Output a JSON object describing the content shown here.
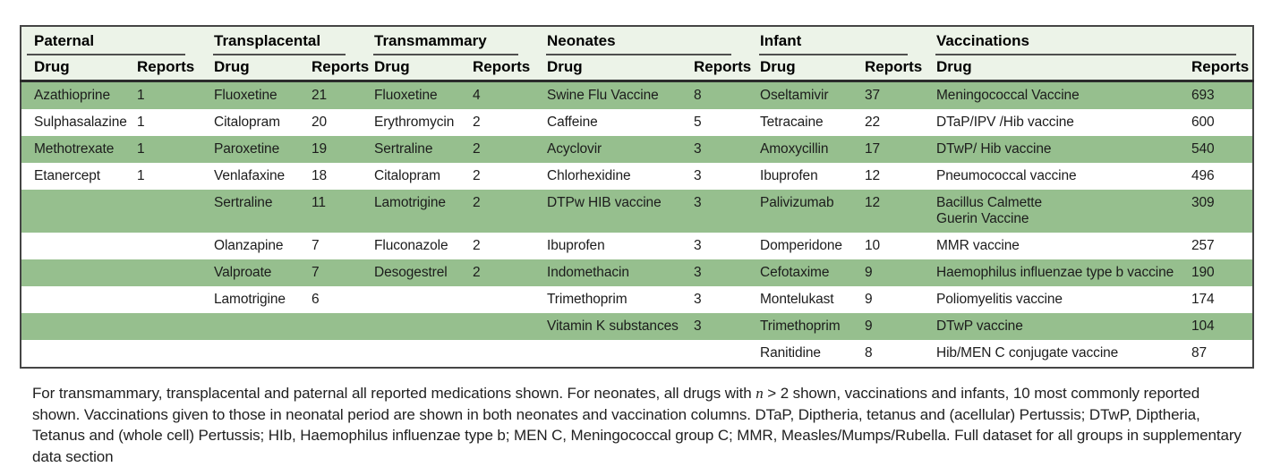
{
  "colors": {
    "row_green": "#96bf8e",
    "header_bg": "#ecf3e8",
    "border": "#454545",
    "rule_dark": "#2b2b2b",
    "group_rule": "#4f4f4f",
    "text": "#1c1c1c"
  },
  "table": {
    "groups": [
      {
        "label": "Paternal"
      },
      {
        "label": "Transplacental"
      },
      {
        "label": "Transmammary"
      },
      {
        "label": "Neonates"
      },
      {
        "label": "Infant"
      },
      {
        "label": "Vaccinations"
      }
    ],
    "sub_headers": {
      "drug": "Drug",
      "reports": "Reports"
    },
    "rows": [
      {
        "shade": "green",
        "cells": [
          [
            "Azathioprine",
            "1"
          ],
          [
            "Fluoxetine",
            "21"
          ],
          [
            "Fluoxetine",
            "4"
          ],
          [
            "Swine Flu Vaccine",
            "8"
          ],
          [
            "Oseltamivir",
            "37"
          ],
          [
            "Meningococcal Vaccine",
            "693"
          ]
        ]
      },
      {
        "shade": "white",
        "cells": [
          [
            "Sulphasalazine",
            "1"
          ],
          [
            "Citalopram",
            "20"
          ],
          [
            "Erythromycin",
            "2"
          ],
          [
            "Caffeine",
            "5"
          ],
          [
            "Tetracaine",
            "22"
          ],
          [
            "DTaP/IPV /Hib vaccine",
            "600"
          ]
        ]
      },
      {
        "shade": "green",
        "cells": [
          [
            "Methotrexate",
            "1"
          ],
          [
            "Paroxetine",
            "19"
          ],
          [
            "Sertraline",
            "2"
          ],
          [
            "Acyclovir",
            "3"
          ],
          [
            "Amoxycillin",
            "17"
          ],
          [
            "DTwP/ Hib vaccine",
            "540"
          ]
        ]
      },
      {
        "shade": "white",
        "cells": [
          [
            "Etanercept",
            "1"
          ],
          [
            "Venlafaxine",
            "18"
          ],
          [
            "Citalopram",
            "2"
          ],
          [
            "Chlorhexidine",
            "3"
          ],
          [
            "Ibuprofen",
            "12"
          ],
          [
            "Pneumococcal vaccine",
            "496"
          ]
        ]
      },
      {
        "shade": "green",
        "cells": [
          [
            "",
            ""
          ],
          [
            "Sertraline",
            "11"
          ],
          [
            "Lamotrigine",
            "2"
          ],
          [
            "DTPw HIB vaccine",
            "3"
          ],
          [
            "Palivizumab",
            "12"
          ],
          [
            "Bacillus Calmette\nGuerin Vaccine",
            "309"
          ]
        ]
      },
      {
        "shade": "white",
        "cells": [
          [
            "",
            ""
          ],
          [
            "Olanzapine",
            "7"
          ],
          [
            "Fluconazole",
            "2"
          ],
          [
            "Ibuprofen",
            "3"
          ],
          [
            "Domperidone",
            "10"
          ],
          [
            "MMR vaccine",
            "257"
          ]
        ]
      },
      {
        "shade": "green",
        "cells": [
          [
            "",
            ""
          ],
          [
            "Valproate",
            "7"
          ],
          [
            "Desogestrel",
            "2"
          ],
          [
            "Indomethacin",
            "3"
          ],
          [
            "Cefotaxime",
            "9"
          ],
          [
            "Haemophilus influenzae type b vaccine",
            "190"
          ]
        ]
      },
      {
        "shade": "white",
        "cells": [
          [
            "",
            ""
          ],
          [
            "Lamotrigine",
            "6"
          ],
          [
            "",
            ""
          ],
          [
            "Trimethoprim",
            "3"
          ],
          [
            "Montelukast",
            "9"
          ],
          [
            "Poliomyelitis vaccine",
            "174"
          ]
        ]
      },
      {
        "shade": "green",
        "cells": [
          [
            "",
            ""
          ],
          [
            "",
            ""
          ],
          [
            "",
            ""
          ],
          [
            "Vitamin K substances",
            "3"
          ],
          [
            "Trimethoprim",
            "9"
          ],
          [
            "DTwP vaccine",
            "104"
          ]
        ]
      },
      {
        "shade": "white",
        "cells": [
          [
            "",
            ""
          ],
          [
            "",
            ""
          ],
          [
            "",
            ""
          ],
          [
            "",
            ""
          ],
          [
            "Ranitidine",
            "8"
          ],
          [
            "Hib/MEN C conjugate vaccine",
            "87"
          ]
        ]
      }
    ]
  },
  "footnote": {
    "part1": "For transmammary, transplacental and paternal all reported medications shown. For neonates, all drugs with ",
    "italic_n": "n",
    "part2": " > 2 shown, vaccinations and infants, 10 most commonly reported shown. Vaccinations given to those in neonatal period are shown in both neonates and vaccination columns. DTaP, Diptheria, tetanus and (acellular) Pertussis; DTwP, Diptheria, Tetanus and (whole cell) Pertussis; HIb, Haemophilus influenzae type b; MEN C, Meningococcal group C; MMR, Measles/Mumps/Rubella. Full dataset for all groups in supplementary data section"
  }
}
